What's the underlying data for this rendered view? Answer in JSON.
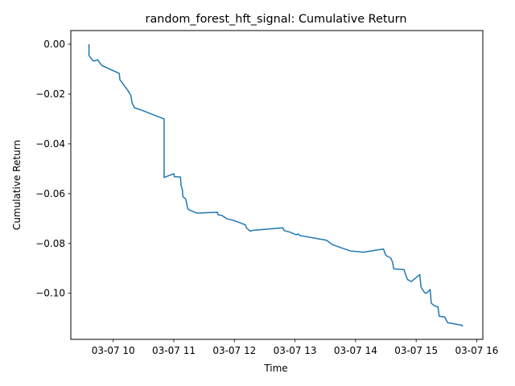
{
  "chart_data": {
    "type": "line",
    "title": "random_forest_hft_signal: Cumulative Return",
    "xlabel": "Time",
    "ylabel": "Cumulative Return",
    "xlim": [
      9.3,
      16.1
    ],
    "ylim": [
      -0.1185,
      0.0055
    ],
    "x_ticks": [
      10,
      11,
      12,
      13,
      14,
      15,
      16
    ],
    "x_tick_labels": [
      "03-07 10",
      "03-07 11",
      "03-07 12",
      "03-07 13",
      "03-07 14",
      "03-07 15",
      "03-07 16"
    ],
    "y_ticks": [
      0.0,
      -0.02,
      -0.04,
      -0.06,
      -0.08,
      -0.1
    ],
    "y_tick_labels": [
      "0.00",
      "−0.02",
      "−0.04",
      "−0.06",
      "−0.08",
      "−0.10"
    ],
    "grid": false,
    "legend": "none",
    "color": "#1f77b4",
    "series": [
      {
        "x": [
          9.6,
          9.6,
          9.63,
          9.67,
          9.72,
          9.74,
          9.81,
          10.1,
          10.11,
          10.14,
          10.2,
          10.24,
          10.29,
          10.31,
          10.35,
          10.45,
          10.84,
          10.84,
          11.0,
          11.01,
          11.11,
          11.12,
          11.14,
          11.15,
          11.19,
          11.2,
          11.23,
          11.25,
          11.38,
          11.72,
          11.73,
          11.79,
          11.87,
          12.02,
          12.18,
          12.2,
          12.26,
          12.32,
          12.8,
          12.82,
          12.92,
          13.02,
          13.05,
          13.08,
          13.52,
          13.62,
          13.89,
          13.92,
          14.13,
          14.46,
          14.5,
          14.58,
          14.61,
          14.63,
          14.8,
          14.84,
          14.86,
          14.92,
          15.06,
          15.08,
          15.14,
          15.17,
          15.23,
          15.25,
          15.3,
          15.36,
          15.38,
          15.47,
          15.52,
          15.75,
          15.77
        ],
        "y": [
          0.0,
          -0.0045,
          -0.0055,
          -0.0067,
          -0.0065,
          -0.0062,
          -0.0085,
          -0.0117,
          -0.0142,
          -0.0152,
          -0.0172,
          -0.0185,
          -0.0205,
          -0.0235,
          -0.0255,
          -0.0263,
          -0.03,
          -0.0535,
          -0.052,
          -0.0532,
          -0.0533,
          -0.0568,
          -0.0582,
          -0.0612,
          -0.062,
          -0.0625,
          -0.066,
          -0.0665,
          -0.0678,
          -0.0675,
          -0.0685,
          -0.0687,
          -0.07,
          -0.071,
          -0.0725,
          -0.0738,
          -0.075,
          -0.0747,
          -0.0737,
          -0.0748,
          -0.0755,
          -0.0765,
          -0.0762,
          -0.0768,
          -0.0787,
          -0.0805,
          -0.0828,
          -0.083,
          -0.0835,
          -0.0822,
          -0.0848,
          -0.0858,
          -0.0875,
          -0.0902,
          -0.0905,
          -0.0935,
          -0.0945,
          -0.0953,
          -0.0925,
          -0.0975,
          -0.0998,
          -0.1,
          -0.0985,
          -0.104,
          -0.105,
          -0.1055,
          -0.1092,
          -0.1095,
          -0.1118,
          -0.1128,
          -0.1133
        ]
      }
    ]
  }
}
